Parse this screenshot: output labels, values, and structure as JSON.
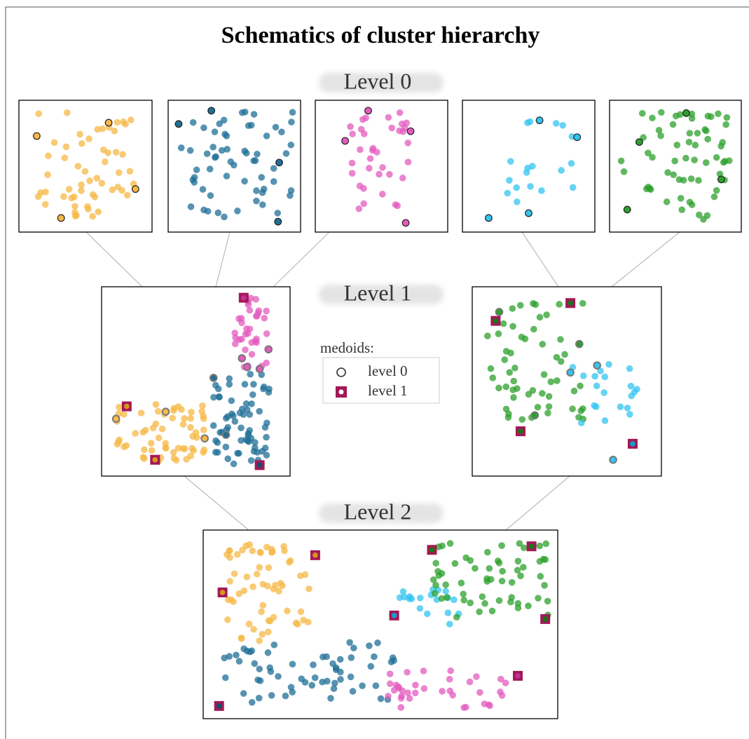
{
  "title": "Schematics of cluster hierarchy",
  "levels": [
    "Level 0",
    "Level 1",
    "Level 2"
  ],
  "legend": {
    "title": "medoids:",
    "items": [
      "level 0",
      "level 1"
    ]
  }
}
